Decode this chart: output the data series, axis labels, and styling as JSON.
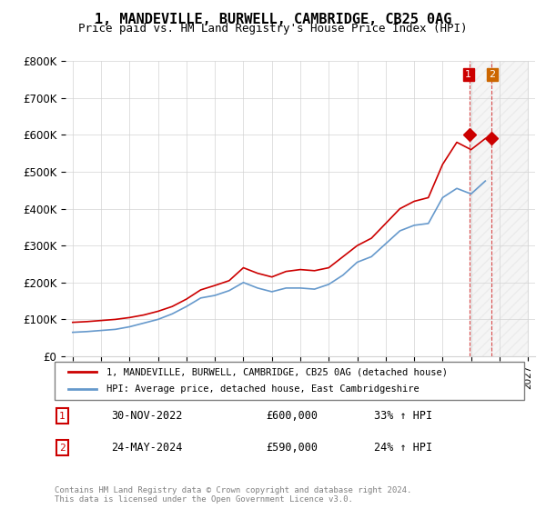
{
  "title": "1, MANDEVILLE, BURWELL, CAMBRIDGE, CB25 0AG",
  "subtitle": "Price paid vs. HM Land Registry's House Price Index (HPI)",
  "legend_line1": "1, MANDEVILLE, BURWELL, CAMBRIDGE, CB25 0AG (detached house)",
  "legend_line2": "HPI: Average price, detached house, East Cambridgeshire",
  "transaction1_label": "1",
  "transaction1_date": "30-NOV-2022",
  "transaction1_price": "£600,000",
  "transaction1_hpi": "33% ↑ HPI",
  "transaction2_label": "2",
  "transaction2_date": "24-MAY-2024",
  "transaction2_price": "£590,000",
  "transaction2_hpi": "24% ↑ HPI",
  "footer": "Contains HM Land Registry data © Crown copyright and database right 2024.\nThis data is licensed under the Open Government Licence v3.0.",
  "red_color": "#cc0000",
  "blue_color": "#6699cc",
  "marker_color": "#cc0000",
  "ylim": [
    0,
    800000
  ],
  "yticks": [
    0,
    100000,
    200000,
    300000,
    400000,
    500000,
    600000,
    700000,
    800000
  ],
  "ytick_labels": [
    "£0",
    "£100K",
    "£200K",
    "£300K",
    "£400K",
    "£500K",
    "£600K",
    "£700K",
    "£800K"
  ],
  "years_red": [
    1995,
    1996,
    1997,
    1998,
    1999,
    2000,
    2001,
    2002,
    2003,
    2004,
    2005,
    2006,
    2007,
    2008,
    2009,
    2010,
    2011,
    2012,
    2013,
    2014,
    2015,
    2016,
    2017,
    2018,
    2019,
    2020,
    2021,
    2022,
    2023,
    2024
  ],
  "values_red": [
    92000,
    94000,
    97000,
    100000,
    105000,
    112000,
    122000,
    135000,
    155000,
    180000,
    192000,
    205000,
    240000,
    225000,
    215000,
    230000,
    235000,
    232000,
    240000,
    270000,
    300000,
    320000,
    360000,
    400000,
    420000,
    430000,
    520000,
    580000,
    560000,
    590000
  ],
  "values_blue": [
    65000,
    67000,
    70000,
    73000,
    80000,
    90000,
    100000,
    115000,
    135000,
    158000,
    165000,
    178000,
    200000,
    185000,
    175000,
    185000,
    185000,
    182000,
    195000,
    220000,
    255000,
    270000,
    305000,
    340000,
    355000,
    360000,
    430000,
    455000,
    440000,
    475000
  ],
  "marker1_x": 2022.92,
  "marker1_y": 600000,
  "marker2_x": 2024.4,
  "marker2_y": 590000,
  "xlim_left": 1995,
  "xlim_right": 2027,
  "xticks": [
    1995,
    1997,
    1999,
    2001,
    2003,
    2005,
    2007,
    2009,
    2011,
    2013,
    2015,
    2017,
    2019,
    2021,
    2023,
    2025,
    2027
  ]
}
